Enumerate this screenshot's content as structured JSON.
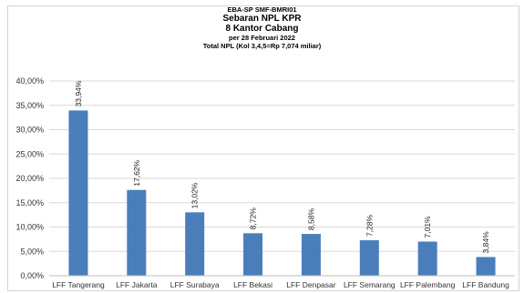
{
  "header": {
    "line1": "EBA-SP SMF-BMRI01",
    "line2": "Sebaran NPL KPR",
    "line3": "8 Kantor Cabang",
    "line4": "per 28 Februari 2022",
    "line5": "Total NPL (Kol 3,4,5=Rp 7,074 miliar)"
  },
  "chart_data": {
    "type": "bar",
    "title": "Sebaran NPL KPR",
    "categories": [
      "LFF Tangerang",
      "LFF Jakarta",
      "LFF Surabaya",
      "LFF Bekasi",
      "LFF Denpasar",
      "LFF Semarang",
      "LFF Palembang",
      "LFF Bandung"
    ],
    "values": [
      33.94,
      17.62,
      13.02,
      8.72,
      8.58,
      7.28,
      7.01,
      3.84
    ],
    "value_labels": [
      "33,94%",
      "17,62%",
      "13,02%",
      "8,72%",
      "8,58%",
      "7,28%",
      "7,01%",
      "3,84%"
    ],
    "ylim": [
      0,
      40
    ],
    "yticks": [
      0,
      5,
      10,
      15,
      20,
      25,
      30,
      35,
      40
    ],
    "ytick_labels": [
      "0,00%",
      "5,00%",
      "10,00%",
      "15,00%",
      "20,00%",
      "25,00%",
      "30,00%",
      "35,00%",
      "40,00%"
    ],
    "grid": true,
    "legend": "none",
    "bar_color": "#4a7ebb",
    "grid_color": "#d9d9d9"
  }
}
